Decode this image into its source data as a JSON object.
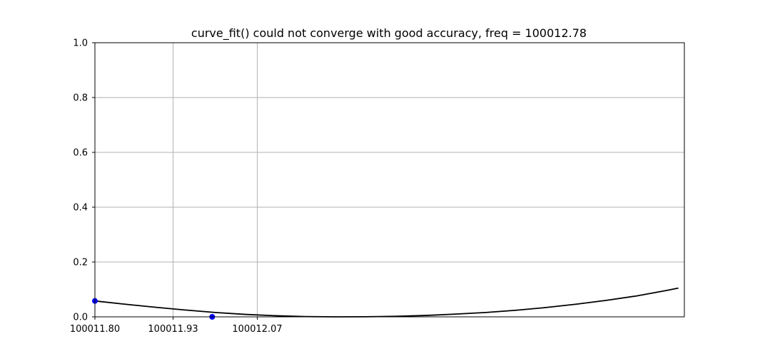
{
  "chart_data": {
    "type": "line",
    "title": "curve_fit() could not converge with good accuracy, freq = 100012.78",
    "xlabel": "",
    "ylabel": "",
    "xlim": [
      100011.8,
      100012.78
    ],
    "ylim": [
      0.0,
      1.0
    ],
    "grid": true,
    "x_ticks": [
      100011.8,
      100011.93,
      100012.07
    ],
    "x_tick_labels": [
      "100011.80",
      "100011.93",
      "100012.07"
    ],
    "y_ticks": [
      0.0,
      0.2,
      0.4,
      0.6,
      0.8,
      1.0
    ],
    "y_tick_labels": [
      "0.0",
      "0.2",
      "0.4",
      "0.6",
      "0.8",
      "1.0"
    ],
    "series": [
      {
        "kind": "scatter",
        "color": "#0000ff",
        "x": [
          100011.8,
          100011.995
        ],
        "y": [
          0.058,
          0.0
        ]
      },
      {
        "kind": "line",
        "color": "#000000",
        "x": [
          100011.8,
          100011.85,
          100011.9,
          100011.95,
          100012.0,
          100012.05,
          100012.1,
          100012.15,
          100012.2,
          100012.25,
          100012.3,
          100012.35,
          100012.4,
          100012.45,
          100012.5,
          100012.55,
          100012.6,
          100012.65,
          100012.7,
          100012.75,
          100012.77
        ],
        "y": [
          0.058,
          0.046,
          0.035,
          0.025,
          0.016,
          0.009,
          0.004,
          0.001,
          0.0,
          0.0003,
          0.002,
          0.005,
          0.01,
          0.016,
          0.024,
          0.034,
          0.046,
          0.06,
          0.076,
          0.096,
          0.105
        ]
      }
    ]
  }
}
